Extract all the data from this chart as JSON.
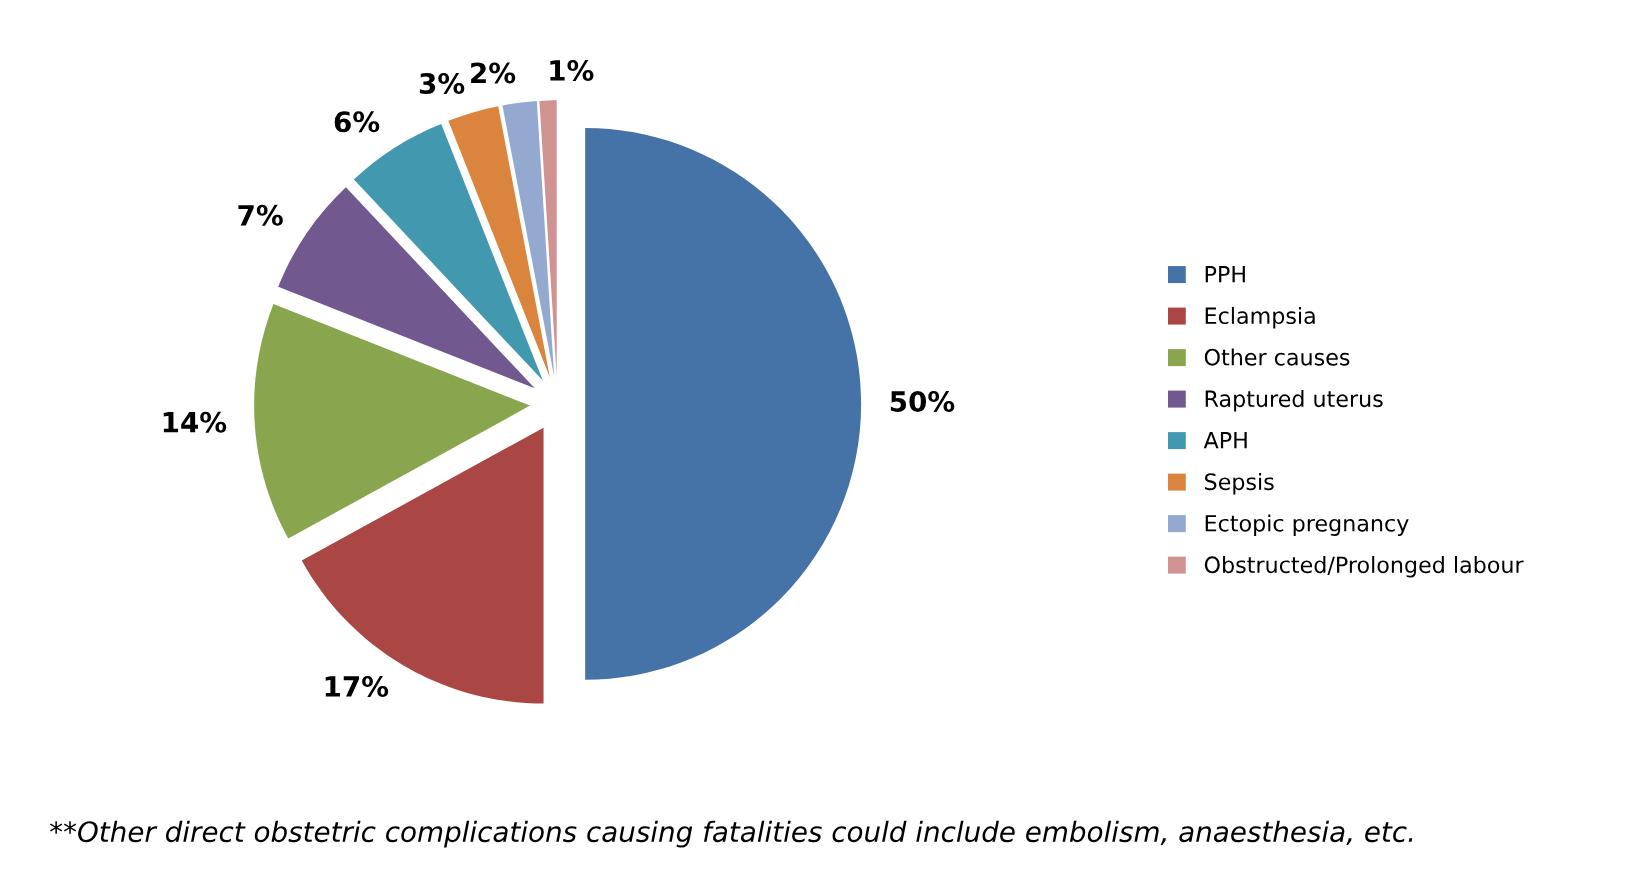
{
  "chart_data": {
    "type": "pie",
    "categories": [
      "PPH",
      "Eclampsia",
      "Other causes",
      "Raptured uterus",
      "APH",
      "Sepsis",
      "Ectopic pregnancy",
      "Obstructed/Prolonged labour"
    ],
    "values": [
      50,
      17,
      14,
      7,
      6,
      3,
      2,
      1
    ],
    "value_labels": [
      "50%",
      "17%",
      "14%",
      "7%",
      "6%",
      "3%",
      "2%",
      "1%"
    ],
    "colors": [
      "#4572a7",
      "#aa4643",
      "#89a54e",
      "#71588f",
      "#4198af",
      "#db843d",
      "#93a9cf",
      "#d19392"
    ],
    "legend": "right",
    "annotations": [
      "**Other direct obstetric complications causing fatalities could include embolism, anaesthesia, etc."
    ]
  }
}
